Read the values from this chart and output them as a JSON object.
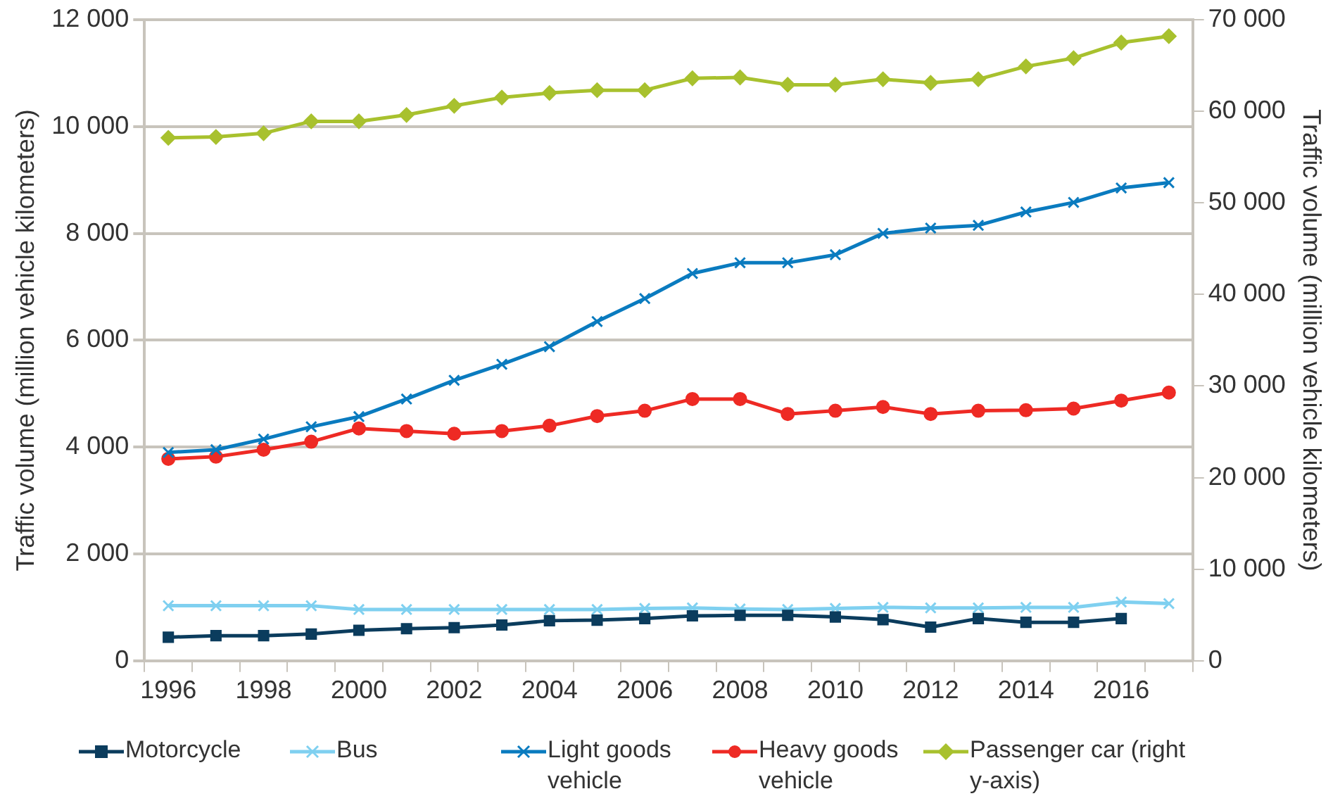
{
  "chart_data": {
    "type": "line",
    "ylabel": "Traffic volume (million vehicle kilometers)",
    "y2label": "Traffic volume (million vehicle kilometers)",
    "categories": [
      "1996",
      null,
      "1998",
      null,
      "2000",
      null,
      "2002",
      null,
      "2004",
      null,
      "2006",
      null,
      "2008",
      null,
      "2010",
      null,
      "2012",
      null,
      "2014",
      null,
      "2016",
      null
    ],
    "ylim": [
      0,
      12000
    ],
    "yticks": [
      {
        "value": 0,
        "label": "0"
      },
      {
        "value": 2000,
        "label": "2 000"
      },
      {
        "value": 4000,
        "label": "4 000"
      },
      {
        "value": 6000,
        "label": "6 000"
      },
      {
        "value": 8000,
        "label": "8 000"
      },
      {
        "value": 10000,
        "label": "10 000"
      },
      {
        "value": 12000,
        "label": "12 000"
      }
    ],
    "y2lim": [
      0,
      70000
    ],
    "y2ticks": [
      {
        "value": 0,
        "label": "0"
      },
      {
        "value": 10000,
        "label": "10 000"
      },
      {
        "value": 20000,
        "label": "20 000"
      },
      {
        "value": 30000,
        "label": "30 000"
      },
      {
        "value": 40000,
        "label": "40 000"
      },
      {
        "value": 50000,
        "label": "50 000"
      },
      {
        "value": 60000,
        "label": "60 000"
      },
      {
        "value": 70000,
        "label": "70 000"
      }
    ],
    "grid": "y",
    "legend": "bottom",
    "line_style": "solid",
    "series": [
      {
        "name": "Motorcycle",
        "color": "#0b3c5d",
        "marker": "square",
        "values": [
          440,
          470,
          470,
          500,
          570,
          600,
          620,
          670,
          750,
          760,
          790,
          840,
          850,
          850,
          820,
          770,
          630,
          790,
          720,
          720,
          790,
          null
        ]
      },
      {
        "name": "Bus",
        "color": "#7fd0f0",
        "marker": "cross",
        "values": [
          1030,
          1030,
          1030,
          1030,
          960,
          960,
          960,
          960,
          960,
          960,
          980,
          990,
          970,
          960,
          980,
          1000,
          990,
          990,
          1000,
          1000,
          1100,
          1070
        ]
      },
      {
        "name": "Light goods vehicle",
        "color": "#0a7bbf",
        "marker": "cross",
        "values": [
          3900,
          3950,
          4150,
          4380,
          4570,
          4900,
          5250,
          5550,
          5880,
          6350,
          6780,
          7250,
          7450,
          7450,
          7600,
          8000,
          8100,
          8150,
          8400,
          8580,
          8850,
          8950
        ]
      },
      {
        "name": "Heavy goods vehicle",
        "color": "#ee2a24",
        "marker": "circle",
        "values": [
          3780,
          3820,
          3950,
          4100,
          4350,
          4300,
          4250,
          4300,
          4400,
          4580,
          4680,
          4900,
          4900,
          4620,
          4680,
          4750,
          4620,
          4680,
          4690,
          4720,
          4870,
          5020
        ]
      },
      {
        "name": "Passenger car (right y-axis)",
        "color": "#a8c12e",
        "marker": "diamond",
        "axis": "y2",
        "values": [
          57100,
          57200,
          57600,
          58900,
          58900,
          59600,
          60600,
          61500,
          62000,
          62300,
          62300,
          63600,
          63700,
          62900,
          62900,
          63500,
          63100,
          63500,
          64900,
          65800,
          67500,
          68200
        ]
      }
    ]
  }
}
